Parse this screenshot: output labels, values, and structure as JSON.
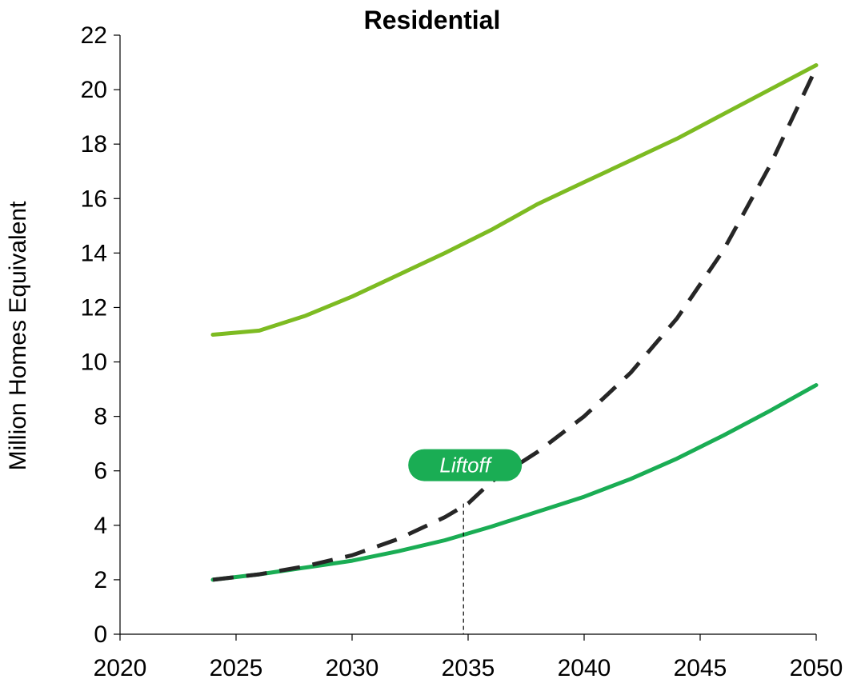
{
  "chart_data": {
    "type": "line",
    "title": "Residential",
    "xlabel": "",
    "ylabel": "Million Homes Equivalent",
    "xlim": [
      2020,
      2050
    ],
    "ylim": [
      0,
      22
    ],
    "x_ticks": [
      2020,
      2025,
      2030,
      2035,
      2040,
      2045,
      2050
    ],
    "y_ticks": [
      0,
      2,
      4,
      6,
      8,
      10,
      12,
      14,
      16,
      18,
      20,
      22
    ],
    "grid": false,
    "legend": "none",
    "series": [
      {
        "style": "solid",
        "color": "#7dbb22",
        "x": [
          2024,
          2026,
          2028,
          2030,
          2032,
          2034,
          2036,
          2038,
          2040,
          2042,
          2044,
          2046,
          2048,
          2050
        ],
        "y": [
          11.0,
          11.15,
          11.7,
          12.4,
          13.2,
          14.0,
          14.85,
          15.8,
          16.6,
          17.4,
          18.2,
          19.1,
          20.0,
          20.9
        ]
      },
      {
        "style": "solid",
        "color": "#1aad54",
        "x": [
          2024,
          2026,
          2028,
          2030,
          2032,
          2034,
          2036,
          2038,
          2040,
          2042,
          2044,
          2046,
          2048,
          2050
        ],
        "y": [
          2.0,
          2.2,
          2.45,
          2.7,
          3.05,
          3.45,
          3.95,
          4.5,
          5.05,
          5.7,
          6.45,
          7.3,
          8.2,
          9.15
        ]
      },
      {
        "style": "dashed",
        "color": "#262626",
        "x": [
          2024,
          2026,
          2028,
          2030,
          2032,
          2034,
          2035,
          2036,
          2038,
          2040,
          2042,
          2044,
          2046,
          2048,
          2050
        ],
        "y": [
          2.0,
          2.2,
          2.5,
          2.9,
          3.5,
          4.3,
          4.8,
          5.6,
          6.7,
          8.0,
          9.6,
          11.6,
          14.1,
          17.2,
          20.8
        ]
      }
    ],
    "annotations": [
      {
        "text": "Liftoff",
        "x": 2034.8,
        "y": 4.8,
        "color": "#1aad54"
      }
    ]
  }
}
